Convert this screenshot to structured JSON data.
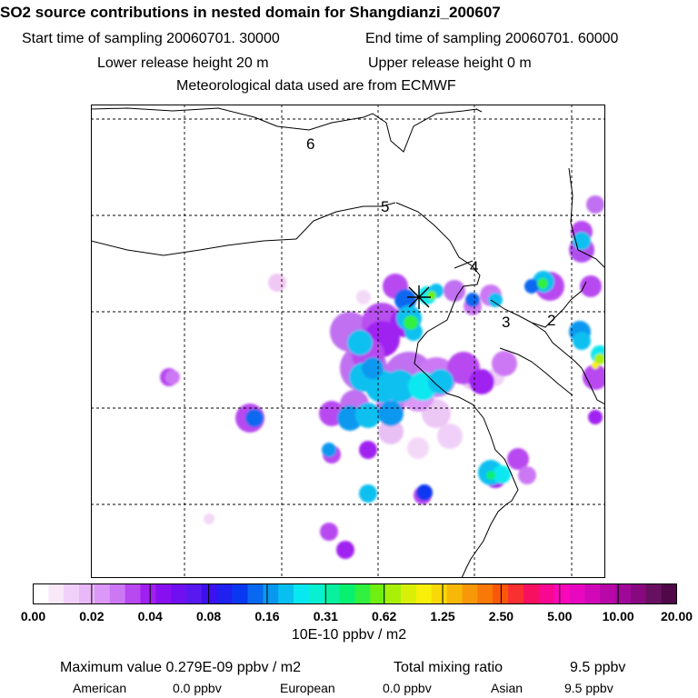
{
  "header": {
    "title": "SO2 source contributions in nested domain for Shangdianzi_200607",
    "start": "Start time of sampling 20060701. 30000",
    "end": "End time of sampling 20060701. 60000",
    "lower": "Lower release height   20 m",
    "upper": "Upper release height    0 m",
    "met": "Meteorological data used are from ECMWF"
  },
  "chart_data": {
    "type": "heatmap",
    "map_labels": [
      "6",
      "5",
      "4",
      "3",
      "2"
    ],
    "colorbar": {
      "tick_labels": [
        "0.00",
        "0.02",
        "0.04",
        "0.08",
        "0.16",
        "0.31",
        "0.62",
        "1.25",
        "2.50",
        "5.00",
        "10.00",
        "20.00"
      ],
      "colors": [
        "#ffffff",
        "#f8e8f8",
        "#f0d0f8",
        "#e8b8f8",
        "#dc98f8",
        "#cc78f4",
        "#b848f0",
        "#a020f0",
        "#8810f0",
        "#7010f0",
        "#5818f0",
        "#3c10f0",
        "#2020f0",
        "#0838f0",
        "#0868f0",
        "#0898f0",
        "#08c0f0",
        "#08e8f0",
        "#08f0d0",
        "#08f0a0",
        "#08f070",
        "#30f040",
        "#70f010",
        "#a8f008",
        "#d8f008",
        "#f8f008",
        "#f8d808",
        "#f8b808",
        "#f89808",
        "#f87808",
        "#f85808",
        "#f83030",
        "#f81060",
        "#f80890",
        "#f808b8",
        "#e808c0",
        "#d008b8",
        "#b808a8",
        "#a00898",
        "#880880",
        "#681060",
        "#500848"
      ],
      "units": "10E-10 ppbv / m2"
    },
    "receptor_marker": "Shangdianzi",
    "summary": {
      "max_label": "Maximum value  0.279E-09 ppbv / m2",
      "total_label": "Total mixing ratio",
      "total_value": "9.5 ppbv",
      "american_label": "American",
      "american_value": "0.0 ppbv",
      "european_label": "European",
      "european_value": "0.0 ppbv",
      "asian_label": "Asian",
      "asian_value": "9.5 ppbv"
    }
  }
}
